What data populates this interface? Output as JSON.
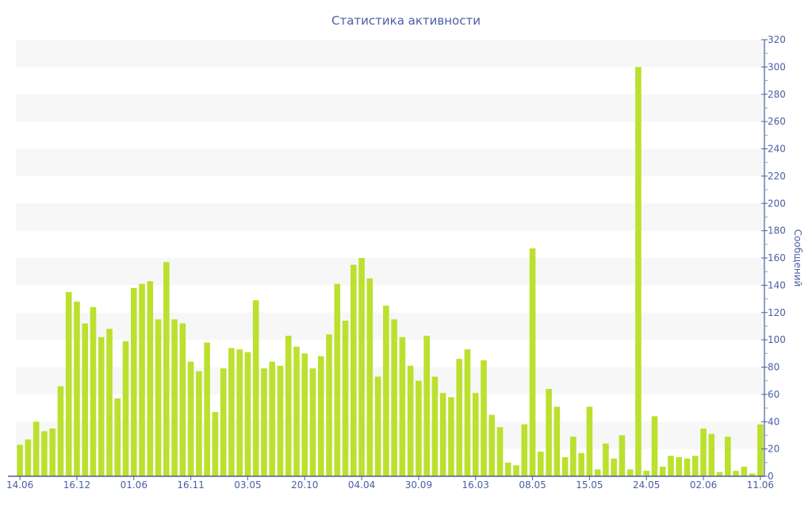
{
  "chart_data": {
    "type": "bar",
    "title": "Статистика активности",
    "xlabel": "",
    "ylabel": "Сообщений",
    "ylim": [
      0,
      320
    ],
    "yticks": [
      0,
      20,
      40,
      60,
      80,
      100,
      120,
      140,
      160,
      180,
      200,
      220,
      240,
      260,
      280,
      300,
      320
    ],
    "y_axis_side": "right",
    "grid": "alternating horizontal bands every 20",
    "x_tick_labels": [
      {
        "index": 0,
        "label": "14.06"
      },
      {
        "index": 7,
        "label": "16.12"
      },
      {
        "index": 14,
        "label": "01.06"
      },
      {
        "index": 21,
        "label": "16.11"
      },
      {
        "index": 28,
        "label": "03.05"
      },
      {
        "index": 35,
        "label": "20.10"
      },
      {
        "index": 42,
        "label": "04.04"
      },
      {
        "index": 49,
        "label": "30.09"
      },
      {
        "index": 56,
        "label": "16.03"
      },
      {
        "index": 63,
        "label": "08.05"
      },
      {
        "index": 70,
        "label": "15.05"
      },
      {
        "index": 77,
        "label": "24.05"
      },
      {
        "index": 84,
        "label": "02.06"
      },
      {
        "index": 91,
        "label": "11.06"
      }
    ],
    "values": [
      23,
      27,
      40,
      33,
      35,
      66,
      135,
      128,
      112,
      124,
      102,
      108,
      57,
      99,
      138,
      141,
      143,
      115,
      157,
      115,
      112,
      84,
      77,
      98,
      47,
      79,
      94,
      93,
      91,
      129,
      79,
      84,
      81,
      103,
      95,
      90,
      79,
      88,
      104,
      141,
      114,
      155,
      160,
      145,
      73,
      125,
      115,
      102,
      81,
      70,
      103,
      73,
      61,
      58,
      86,
      93,
      61,
      85,
      45,
      36,
      10,
      8,
      38,
      167,
      18,
      64,
      51,
      14,
      29,
      17,
      51,
      5,
      24,
      13,
      30,
      5,
      300,
      4,
      44,
      7,
      15,
      14,
      13,
      15,
      35,
      31,
      3,
      29,
      4,
      7,
      2,
      38
    ],
    "colors": {
      "bar": "#bbe02e",
      "axis": "#4a5fa5",
      "band": "#f7f7f7"
    }
  }
}
